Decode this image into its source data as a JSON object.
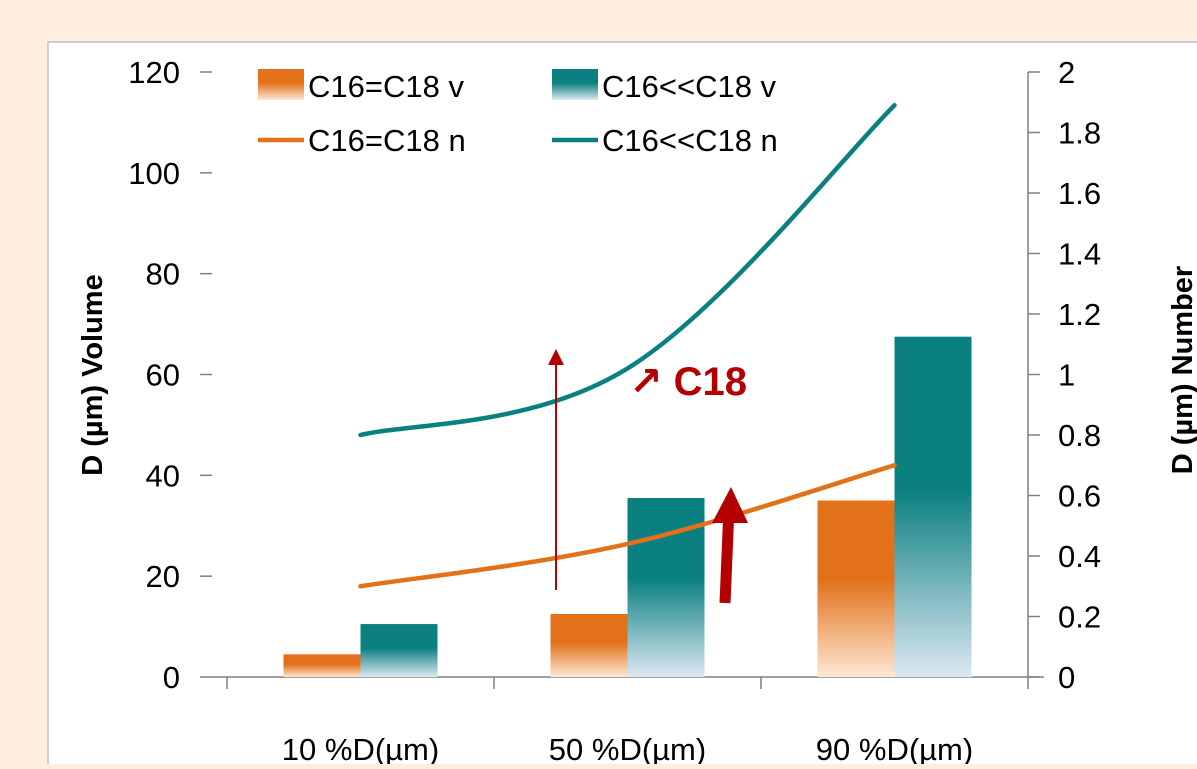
{
  "chart_data": {
    "type": "bar",
    "categories": [
      "10 %D(µm)",
      "50 %D(µm)",
      "90 %D(µm)"
    ],
    "bar_series": [
      {
        "name": "C16=C18 v",
        "values": [
          4.5,
          12.5,
          35
        ],
        "color": "#e2711a",
        "axis": "left"
      },
      {
        "name": "C16<<C18 v",
        "values": [
          10.5,
          35.5,
          67.5
        ],
        "color": "#0a8080",
        "axis": "left"
      }
    ],
    "line_series": [
      {
        "name": "C16=C18 n",
        "values": [
          0.3,
          0.44,
          0.7
        ],
        "color": "#e2711a",
        "axis": "right"
      },
      {
        "name": "C16<<C18 n",
        "values": [
          0.8,
          1.02,
          1.89
        ],
        "color": "#0a8080",
        "axis": "right"
      }
    ],
    "ylabel": "D (µm) Volume",
    "y2label": "D (µm) Number",
    "ylim": [
      0,
      120
    ],
    "y2lim": [
      0,
      2
    ],
    "yticks": [
      "0",
      "20",
      "40",
      "60",
      "80",
      "100",
      "120"
    ],
    "y2ticks": [
      "0",
      "0.2",
      "0.4",
      "0.6",
      "0.8",
      "1",
      "1.2",
      "1.4",
      "1.6",
      "1.8",
      "2"
    ],
    "legend_position": "top-left",
    "grid": false,
    "annotation": "↗ C18",
    "annotation_color": "#b30000"
  }
}
